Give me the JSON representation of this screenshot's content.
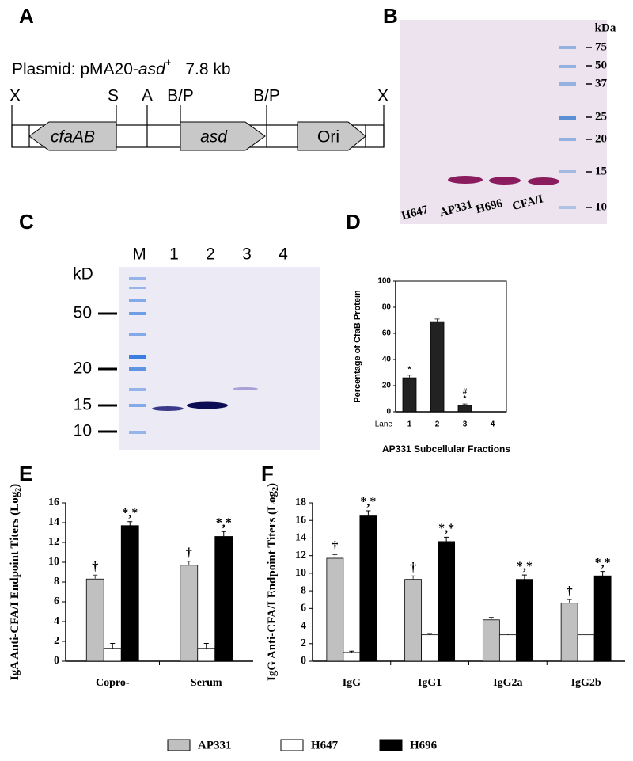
{
  "panel_labels": [
    "A",
    "B",
    "C",
    "D",
    "E",
    "F"
  ],
  "plasmid": {
    "title_prefix": "Plasmid: pMA20-",
    "title_gene": "asd",
    "title_sup": "+",
    "size": "7.8 kb",
    "sites": [
      "X",
      "S",
      "A",
      "B/P",
      "B/P",
      "X"
    ],
    "genes": [
      "cfaAB",
      "asd",
      "Ori"
    ]
  },
  "gel_b": {
    "unit": "kDa",
    "markers": [
      75,
      50,
      37,
      25,
      20,
      15,
      10
    ],
    "lanes": [
      "H647",
      "AP331",
      "H696",
      "CFA/I"
    ]
  },
  "gel_c": {
    "unit": "kD",
    "markers": [
      50,
      20,
      15,
      10
    ],
    "lanes": [
      "M",
      "1",
      "2",
      "3",
      "4"
    ]
  },
  "chart_data": [
    {
      "type": "bar",
      "ylabel": "Percentage of CfaB Protein",
      "xlabel": "AP331 Subcellular Fractions",
      "category_axis_label": "Lane",
      "categories": [
        "1",
        "2",
        "3",
        "4"
      ],
      "series": [
        {
          "color": "#222222",
          "values": [
            26,
            69,
            5,
            0
          ],
          "errors": [
            2,
            2,
            1,
            0
          ],
          "annotations": [
            "*",
            null,
            "#",
            null
          ],
          "annotations2": [
            null,
            null,
            "*",
            null
          ]
        }
      ],
      "ylim": [
        0,
        100
      ],
      "yticks": [
        0,
        20,
        40,
        60,
        80,
        100
      ]
    },
    {
      "type": "bar",
      "ylabel": [
        "IgA Anti-CFA/I Endpoint Titers (Log",
        "2",
        ")"
      ],
      "categories": [
        "Copro-",
        "Serum"
      ],
      "series": [
        {
          "name": "AP331",
          "color": "#c0c0c0",
          "values": [
            8.3,
            9.7
          ],
          "errors": [
            0.4,
            0.4
          ],
          "annotations": [
            "†",
            "†"
          ]
        },
        {
          "name": "H647",
          "color": "#ffffff",
          "values": [
            1.3,
            1.3
          ],
          "errors": [
            0.5,
            0.5
          ],
          "annotations": [
            null,
            null
          ]
        },
        {
          "name": "H696",
          "color": "#000000",
          "values": [
            13.7,
            12.6
          ],
          "errors": [
            0.4,
            0.5
          ],
          "annotations": [
            "*,*",
            "*,*"
          ]
        }
      ],
      "ylim": [
        0,
        16
      ],
      "yticks": [
        0,
        2,
        4,
        6,
        8,
        10,
        12,
        14,
        16
      ]
    },
    {
      "type": "bar",
      "ylabel": [
        "IgG Anti-CFA/I Endpoint Titers (Log",
        "2",
        ")"
      ],
      "categories": [
        "IgG",
        "IgG1",
        "IgG2a",
        "IgG2b"
      ],
      "series": [
        {
          "name": "AP331",
          "color": "#c0c0c0",
          "values": [
            11.7,
            9.3,
            4.7,
            6.6
          ],
          "errors": [
            0.4,
            0.4,
            0.3,
            0.4
          ],
          "annotations": [
            "†",
            "†",
            null,
            "†"
          ]
        },
        {
          "name": "H647",
          "color": "#ffffff",
          "values": [
            1.0,
            3.0,
            3.0,
            3.0
          ],
          "errors": [
            0.15,
            0.15,
            0.1,
            0.1
          ],
          "annotations": [
            null,
            null,
            null,
            null
          ]
        },
        {
          "name": "H696",
          "color": "#000000",
          "values": [
            16.6,
            13.6,
            9.3,
            9.7
          ],
          "errors": [
            0.5,
            0.5,
            0.5,
            0.5
          ],
          "annotations": [
            "*,*",
            "*,*",
            "*,*",
            "*,*"
          ]
        }
      ],
      "ylim": [
        0,
        18
      ],
      "yticks": [
        0,
        2,
        4,
        6,
        8,
        10,
        12,
        14,
        16,
        18
      ]
    }
  ]
}
